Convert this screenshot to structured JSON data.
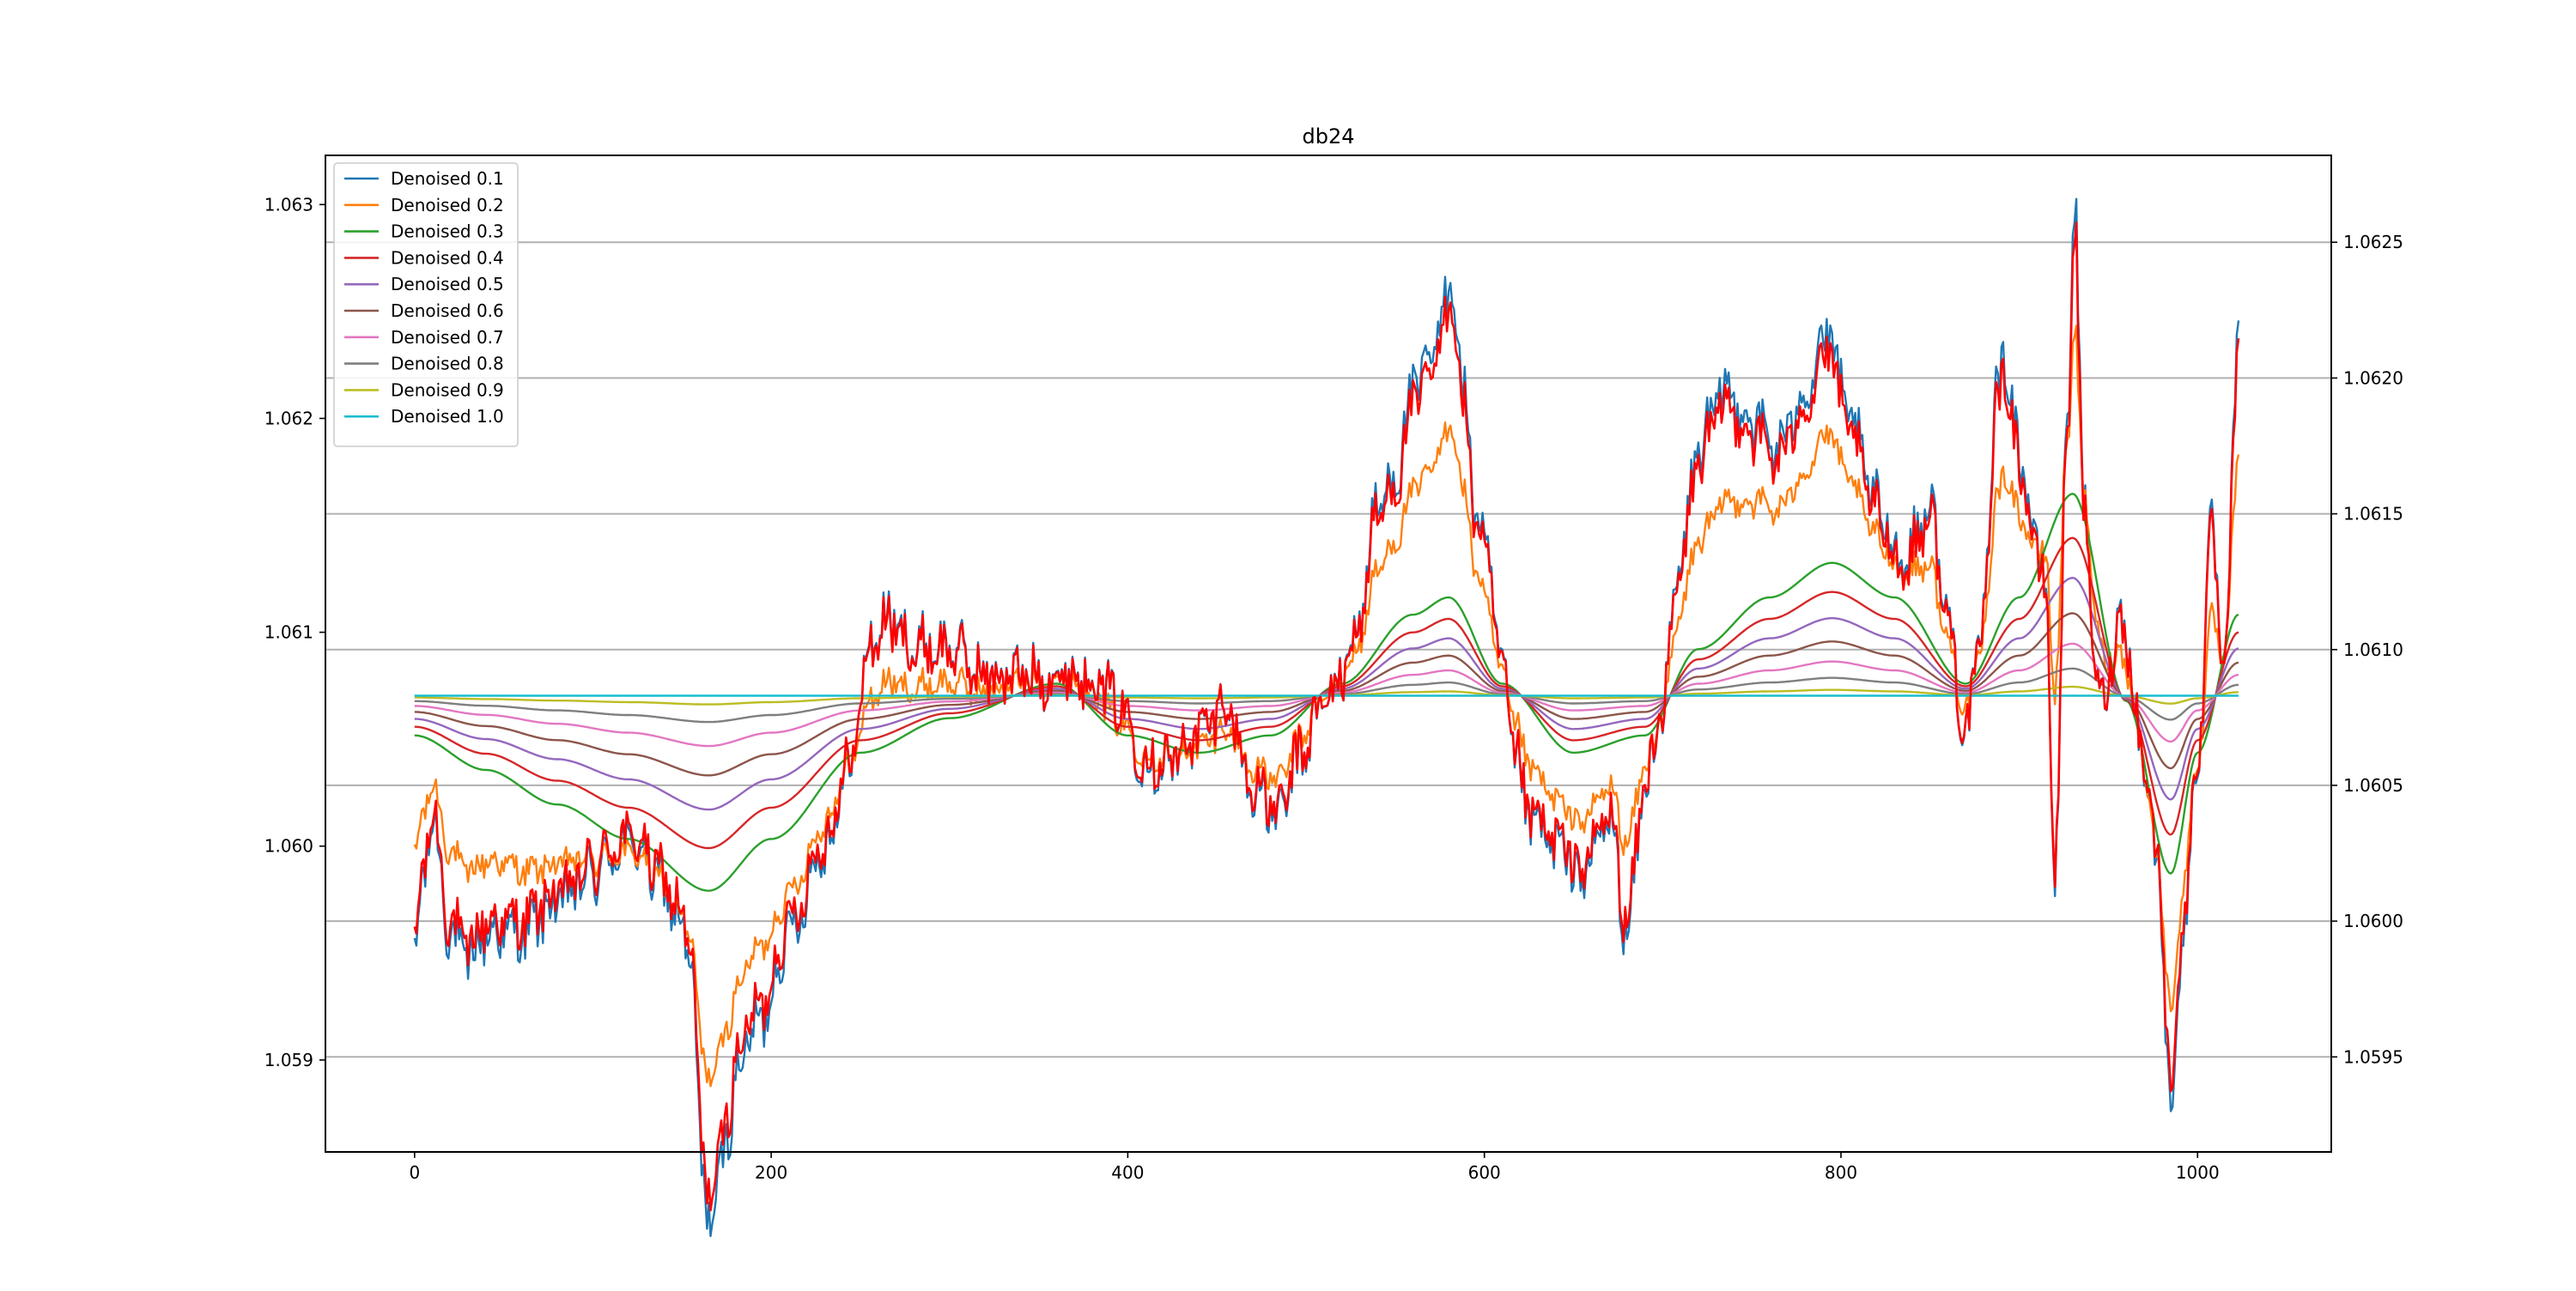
{
  "chart_data": {
    "type": "line",
    "title": "db24",
    "xlabel": "",
    "ylabel": "",
    "xlim": [
      -50,
      1075
    ],
    "ylim_left": [
      1.05857,
      1.06323
    ],
    "ylim_right": [
      1.05915,
      1.06282
    ],
    "x_ticks": [
      0,
      200,
      400,
      600,
      800,
      1000
    ],
    "x_tick_labels": [
      "0",
      "200",
      "400",
      "600",
      "800",
      "1000"
    ],
    "y_ticks_left": [
      1.059,
      1.06,
      1.061,
      1.062,
      1.063
    ],
    "y_tick_labels_left": [
      "1.059",
      "1.060",
      "1.061",
      "1.062",
      "1.063"
    ],
    "y_ticks_right": [
      1.0595,
      1.06,
      1.0605,
      1.061,
      1.0615,
      1.062,
      1.0625
    ],
    "y_tick_labels_right": [
      "1.0595",
      "1.0600",
      "1.0605",
      "1.0610",
      "1.0615",
      "1.0620",
      "1.0625"
    ],
    "grid": "horizontal lines at right-axis ticks",
    "legend_position": "upper left",
    "x_max": 1023,
    "mean_level": 1.06083,
    "original_series": {
      "name": "",
      "color": "#ff0000",
      "points": [
        [
          0,
          1.0599
        ],
        [
          5,
          1.0602
        ],
        [
          10,
          1.0604
        ],
        [
          20,
          1.06
        ],
        [
          30,
          1.0599
        ],
        [
          40,
          1.06
        ],
        [
          60,
          1.06
        ],
        [
          80,
          1.0601
        ],
        [
          100,
          1.0602
        ],
        [
          115,
          1.0603
        ],
        [
          125,
          1.0603
        ],
        [
          135,
          1.0602
        ],
        [
          145,
          1.0601
        ],
        [
          155,
          1.0599
        ],
        [
          162,
          1.0591
        ],
        [
          168,
          1.059
        ],
        [
          175,
          1.0593
        ],
        [
          185,
          1.0596
        ],
        [
          195,
          1.0597
        ],
        [
          210,
          1.06
        ],
        [
          230,
          1.0603
        ],
        [
          245,
          1.0606
        ],
        [
          255,
          1.061
        ],
        [
          265,
          1.0611
        ],
        [
          280,
          1.061
        ],
        [
          300,
          1.061
        ],
        [
          320,
          1.0609
        ],
        [
          340,
          1.0609
        ],
        [
          360,
          1.0609
        ],
        [
          380,
          1.0609
        ],
        [
          395,
          1.0608
        ],
        [
          410,
          1.0606
        ],
        [
          425,
          1.0606
        ],
        [
          440,
          1.0607
        ],
        [
          455,
          1.0608
        ],
        [
          470,
          1.0605
        ],
        [
          485,
          1.0604
        ],
        [
          495,
          1.0606
        ],
        [
          510,
          1.0608
        ],
        [
          520,
          1.0609
        ],
        [
          530,
          1.0611
        ],
        [
          540,
          1.0615
        ],
        [
          550,
          1.0616
        ],
        [
          560,
          1.0619
        ],
        [
          570,
          1.062
        ],
        [
          578,
          1.0622
        ],
        [
          582,
          1.0623
        ],
        [
          588,
          1.0619
        ],
        [
          595,
          1.0615
        ],
        [
          602,
          1.0613
        ],
        [
          610,
          1.0609
        ],
        [
          618,
          1.0606
        ],
        [
          625,
          1.0604
        ],
        [
          640,
          1.0603
        ],
        [
          655,
          1.0602
        ],
        [
          670,
          1.0604
        ],
        [
          680,
          1.06
        ],
        [
          690,
          1.0605
        ],
        [
          700,
          1.0608
        ],
        [
          710,
          1.0613
        ],
        [
          720,
          1.0617
        ],
        [
          735,
          1.0619
        ],
        [
          750,
          1.0618
        ],
        [
          765,
          1.0617
        ],
        [
          780,
          1.0619
        ],
        [
          792,
          1.0621
        ],
        [
          805,
          1.0618
        ],
        [
          820,
          1.0615
        ],
        [
          835,
          1.0613
        ],
        [
          850,
          1.0615
        ],
        [
          860,
          1.0611
        ],
        [
          870,
          1.0607
        ],
        [
          880,
          1.0611
        ],
        [
          888,
          1.062
        ],
        [
          895,
          1.0619
        ],
        [
          905,
          1.0615
        ],
        [
          915,
          1.0612
        ],
        [
          920,
          1.0602
        ],
        [
          927,
          1.0618
        ],
        [
          931,
          1.0626
        ],
        [
          936,
          1.0615
        ],
        [
          945,
          1.0608
        ],
        [
          958,
          1.0611
        ],
        [
          970,
          1.0606
        ],
        [
          978,
          1.0602
        ],
        [
          985,
          1.0594
        ],
        [
          992,
          1.06
        ],
        [
          1000,
          1.0606
        ],
        [
          1008,
          1.0614
        ],
        [
          1015,
          1.0609
        ],
        [
          1023,
          1.0621
        ]
      ]
    },
    "series": [
      {
        "name": "Denoised 0.1",
        "color": "#1f77b4"
      },
      {
        "name": "Denoised 0.2",
        "color": "#ff7f0e"
      },
      {
        "name": "Denoised 0.3",
        "color": "#2ca02c"
      },
      {
        "name": "Denoised 0.4",
        "color": "#d62728"
      },
      {
        "name": "Denoised 0.5",
        "color": "#9467bd"
      },
      {
        "name": "Denoised 0.6",
        "color": "#8c564b"
      },
      {
        "name": "Denoised 0.7",
        "color": "#e377c2"
      },
      {
        "name": "Denoised 0.8",
        "color": "#7f7f7f"
      },
      {
        "name": "Denoised 0.9",
        "color": "#bcbd22"
      },
      {
        "name": "Denoised 1.0",
        "color": "#17becf"
      }
    ],
    "smooth_curve": {
      "points": [
        [
          0,
          1.0606
        ],
        [
          40,
          1.0604
        ],
        [
          80,
          1.0602
        ],
        [
          120,
          1.06
        ],
        [
          165,
          1.0597
        ],
        [
          200,
          1.06
        ],
        [
          250,
          1.0605
        ],
        [
          300,
          1.0607
        ],
        [
          360,
          1.0609
        ],
        [
          400,
          1.0606
        ],
        [
          440,
          1.0605
        ],
        [
          480,
          1.0606
        ],
        [
          520,
          1.0609
        ],
        [
          560,
          1.0613
        ],
        [
          580,
          1.0614
        ],
        [
          610,
          1.0609
        ],
        [
          650,
          1.0605
        ],
        [
          690,
          1.0606
        ],
        [
          720,
          1.0611
        ],
        [
          760,
          1.0614
        ],
        [
          795,
          1.0616
        ],
        [
          830,
          1.0614
        ],
        [
          870,
          1.0609
        ],
        [
          900,
          1.0614
        ],
        [
          930,
          1.062
        ],
        [
          960,
          1.0608
        ],
        [
          985,
          1.0598
        ],
        [
          1000,
          1.0605
        ],
        [
          1023,
          1.0613
        ]
      ]
    }
  }
}
